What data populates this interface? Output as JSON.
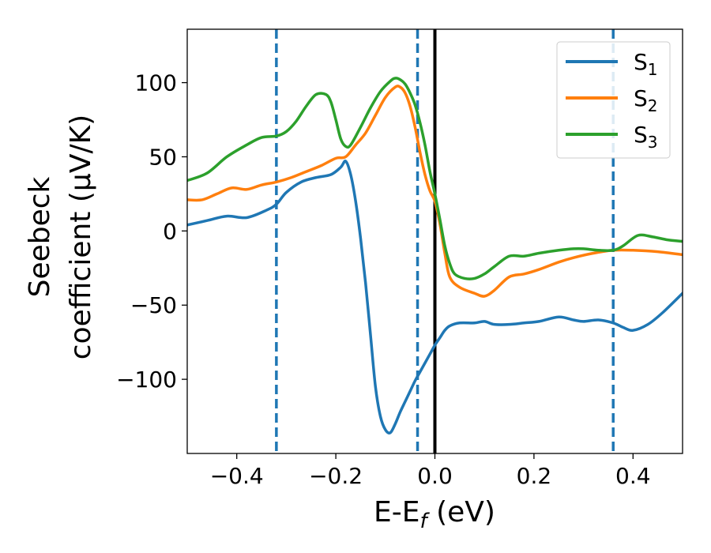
{
  "chart_data": {
    "type": "line",
    "xlabel": "E-E",
    "xlabel_sub": "f",
    "xlabel_unit": " (eV)",
    "ylabel_line1": "Seebeck",
    "ylabel_line2": "coefficient  (μV/K)",
    "xlim": [
      -0.5,
      0.5
    ],
    "ylim": [
      -150,
      136
    ],
    "grid": false,
    "legend_position": "top-right",
    "xticks": [
      -0.4,
      -0.2,
      0.0,
      0.2,
      0.4
    ],
    "xtick_labels": [
      "−0.4",
      "−0.2",
      "0.0",
      "0.2",
      "0.4"
    ],
    "yticks": [
      -100,
      -50,
      0,
      50,
      100
    ],
    "ytick_labels": [
      "−100",
      "−50",
      "0",
      "50",
      "100"
    ],
    "vlines": [
      {
        "x": -0.32,
        "style": "dashed",
        "color": "#1f77b4"
      },
      {
        "x": -0.035,
        "style": "dashed",
        "color": "#1f77b4"
      },
      {
        "x": 0.0,
        "style": "solid",
        "color": "#000000"
      },
      {
        "x": 0.36,
        "style": "dashed",
        "color": "#1f77b4"
      }
    ],
    "series": [
      {
        "name": "S",
        "subscript": "1",
        "color": "#1f77b4",
        "x": [
          -0.5,
          -0.46,
          -0.42,
          -0.38,
          -0.34,
          -0.32,
          -0.3,
          -0.27,
          -0.24,
          -0.21,
          -0.19,
          -0.18,
          -0.17,
          -0.16,
          -0.15,
          -0.14,
          -0.13,
          -0.12,
          -0.11,
          -0.1,
          -0.09,
          -0.08,
          -0.07,
          -0.06,
          -0.05,
          -0.04,
          -0.03,
          -0.02,
          -0.01,
          0.0,
          0.01,
          0.02,
          0.03,
          0.05,
          0.08,
          0.1,
          0.12,
          0.15,
          0.18,
          0.21,
          0.25,
          0.28,
          0.3,
          0.33,
          0.36,
          0.38,
          0.4,
          0.43,
          0.46,
          0.5
        ],
        "y": [
          4,
          7,
          10,
          9,
          14,
          18,
          26,
          33,
          36,
          38,
          43,
          47,
          38,
          20,
          -5,
          -35,
          -70,
          -105,
          -125,
          -134,
          -136,
          -130,
          -122,
          -115,
          -108,
          -101,
          -95,
          -89,
          -83,
          -77,
          -72,
          -67,
          -64,
          -62,
          -62,
          -61,
          -63,
          -63,
          -62,
          -61,
          -58,
          -60,
          -61,
          -60,
          -62,
          -65,
          -67,
          -63,
          -55,
          -42
        ]
      },
      {
        "name": "S",
        "subscript": "2",
        "color": "#ff7f0e",
        "x": [
          -0.5,
          -0.47,
          -0.44,
          -0.41,
          -0.38,
          -0.35,
          -0.32,
          -0.29,
          -0.26,
          -0.23,
          -0.2,
          -0.18,
          -0.16,
          -0.14,
          -0.12,
          -0.1,
          -0.08,
          -0.07,
          -0.06,
          -0.05,
          -0.04,
          -0.03,
          -0.02,
          -0.01,
          0.0,
          0.01,
          0.02,
          0.03,
          0.05,
          0.08,
          0.1,
          0.12,
          0.15,
          0.18,
          0.21,
          0.25,
          0.28,
          0.32,
          0.36,
          0.4,
          0.45,
          0.5
        ],
        "y": [
          21,
          21,
          25,
          29,
          28,
          31,
          33,
          36,
          40,
          44,
          49,
          50,
          58,
          66,
          78,
          90,
          97,
          97,
          93,
          84,
          70,
          53,
          38,
          27,
          20,
          5,
          -15,
          -31,
          -38,
          -42,
          -44,
          -40,
          -31,
          -29,
          -26,
          -21,
          -18,
          -15,
          -13,
          -13,
          -14,
          -16
        ]
      },
      {
        "name": "S",
        "subscript": "3",
        "color": "#2ca02c",
        "x": [
          -0.5,
          -0.46,
          -0.42,
          -0.38,
          -0.35,
          -0.32,
          -0.3,
          -0.28,
          -0.26,
          -0.24,
          -0.22,
          -0.21,
          -0.2,
          -0.19,
          -0.18,
          -0.17,
          -0.15,
          -0.13,
          -0.11,
          -0.09,
          -0.08,
          -0.07,
          -0.06,
          -0.05,
          -0.04,
          -0.03,
          -0.02,
          -0.01,
          0.0,
          0.01,
          0.02,
          0.03,
          0.04,
          0.06,
          0.08,
          0.1,
          0.12,
          0.15,
          0.18,
          0.21,
          0.25,
          0.28,
          0.3,
          0.33,
          0.36,
          0.38,
          0.41,
          0.44,
          0.47,
          0.5
        ],
        "y": [
          34,
          39,
          50,
          58,
          63,
          64,
          67,
          74,
          84,
          92,
          92,
          87,
          75,
          62,
          57,
          58,
          70,
          83,
          94,
          101,
          103,
          102,
          99,
          93,
          85,
          73,
          58,
          40,
          25,
          8,
          -10,
          -22,
          -29,
          -32,
          -32,
          -29,
          -24,
          -17,
          -17,
          -15,
          -13,
          -12,
          -12,
          -13,
          -13,
          -10,
          -3,
          -4,
          -6,
          -7
        ]
      }
    ]
  }
}
